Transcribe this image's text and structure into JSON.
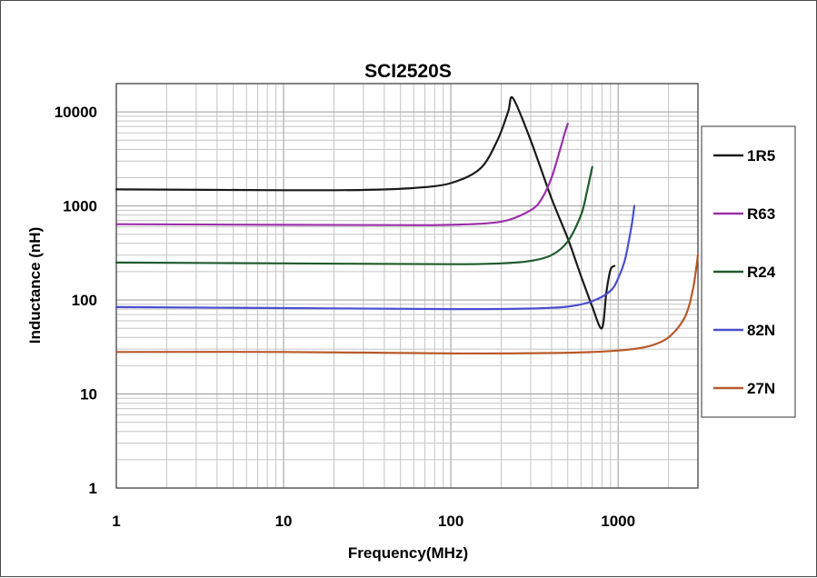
{
  "chart_data": {
    "type": "line",
    "title": "SCI2520S",
    "xlabel": "Frequency(MHz)",
    "ylabel": "Inductance (nH)",
    "x_scale": "log",
    "y_scale": "log",
    "xlim": [
      1,
      3000
    ],
    "ylim": [
      1,
      20000
    ],
    "x_ticks": [
      1,
      10,
      100,
      1000
    ],
    "x_tick_labels": [
      "1",
      "10",
      "100",
      "1000"
    ],
    "y_ticks": [
      1,
      10,
      100,
      1000,
      10000
    ],
    "y_tick_labels": [
      "1",
      "10",
      "100",
      "1000",
      "10000"
    ],
    "grid": true,
    "legend_position": "right",
    "series": [
      {
        "name": "1R5",
        "color": "#1a1a1a",
        "x": [
          1,
          10,
          30,
          60,
          100,
          150,
          190,
          220,
          235,
          300,
          400,
          500,
          600,
          700,
          800,
          850,
          900,
          950
        ],
        "y": [
          1500,
          1470,
          1480,
          1550,
          1750,
          2500,
          5000,
          10000,
          14000,
          5000,
          1200,
          450,
          180,
          85,
          50,
          120,
          210,
          230
        ]
      },
      {
        "name": "R63",
        "color": "#9b30a8",
        "x": [
          1,
          10,
          50,
          100,
          200,
          300,
          350,
          400,
          450,
          480,
          500
        ],
        "y": [
          640,
          630,
          625,
          630,
          680,
          900,
          1200,
          2000,
          4000,
          6000,
          7500
        ]
      },
      {
        "name": "R24",
        "color": "#1f5c2e",
        "x": [
          1,
          10,
          100,
          200,
          300,
          400,
          500,
          600,
          650,
          700
        ],
        "y": [
          250,
          245,
          240,
          245,
          260,
          300,
          420,
          800,
          1400,
          2600
        ]
      },
      {
        "name": "82N",
        "color": "#4a4fd0",
        "x": [
          1,
          10,
          100,
          300,
          500,
          700,
          900,
          1000,
          1100,
          1200,
          1250
        ],
        "y": [
          84,
          82,
          80,
          81,
          85,
          97,
          125,
          170,
          270,
          600,
          1000
        ]
      },
      {
        "name": "27N",
        "color": "#b85a2a",
        "x": [
          1,
          10,
          100,
          500,
          1000,
          1500,
          2000,
          2500,
          2800,
          3000
        ],
        "y": [
          28,
          28,
          27,
          27.5,
          29,
          32,
          40,
          65,
          130,
          300
        ]
      }
    ]
  }
}
